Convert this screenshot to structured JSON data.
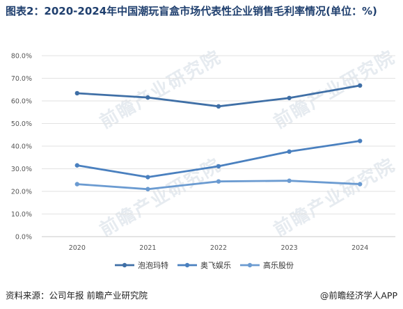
{
  "header": {
    "title": "图表2：2020-2024年中国潮玩盲盒市场代表性企业销售毛利率情况(单位：%)"
  },
  "watermark": {
    "text": "前瞻产业研究院"
  },
  "footer": {
    "source": "资料来源：公司年报 前瞻产业研究院",
    "credit": "@前瞻经济学人APP"
  },
  "chart_data": {
    "type": "line",
    "title": "图表2：2020-2024年中国潮玩盲盒市场代表性企业销售毛利率情况(单位：%)",
    "x": [
      "2020",
      "2021",
      "2022",
      "2023",
      "2024"
    ],
    "ylim": [
      0,
      80
    ],
    "yticks": [
      0,
      10,
      20,
      30,
      40,
      50,
      60,
      70,
      80
    ],
    "ytick_labels": [
      "0.0%",
      "10.0%",
      "20.0%",
      "30.0%",
      "40.0%",
      "50.0%",
      "60.0%",
      "70.0%",
      "80.0%"
    ],
    "grid": true,
    "legend_position": "bottom",
    "series": [
      {
        "name": "泡泡玛特",
        "values": [
          63.4,
          61.5,
          57.6,
          61.3,
          66.8
        ],
        "color": "#3f6fa6"
      },
      {
        "name": "奥飞娱乐",
        "values": [
          31.5,
          26.3,
          31.1,
          37.6,
          42.3
        ],
        "color": "#4a80bf"
      },
      {
        "name": "高乐股份",
        "values": [
          23.2,
          21.0,
          24.4,
          24.7,
          23.2
        ],
        "color": "#6b9bd1"
      }
    ]
  }
}
